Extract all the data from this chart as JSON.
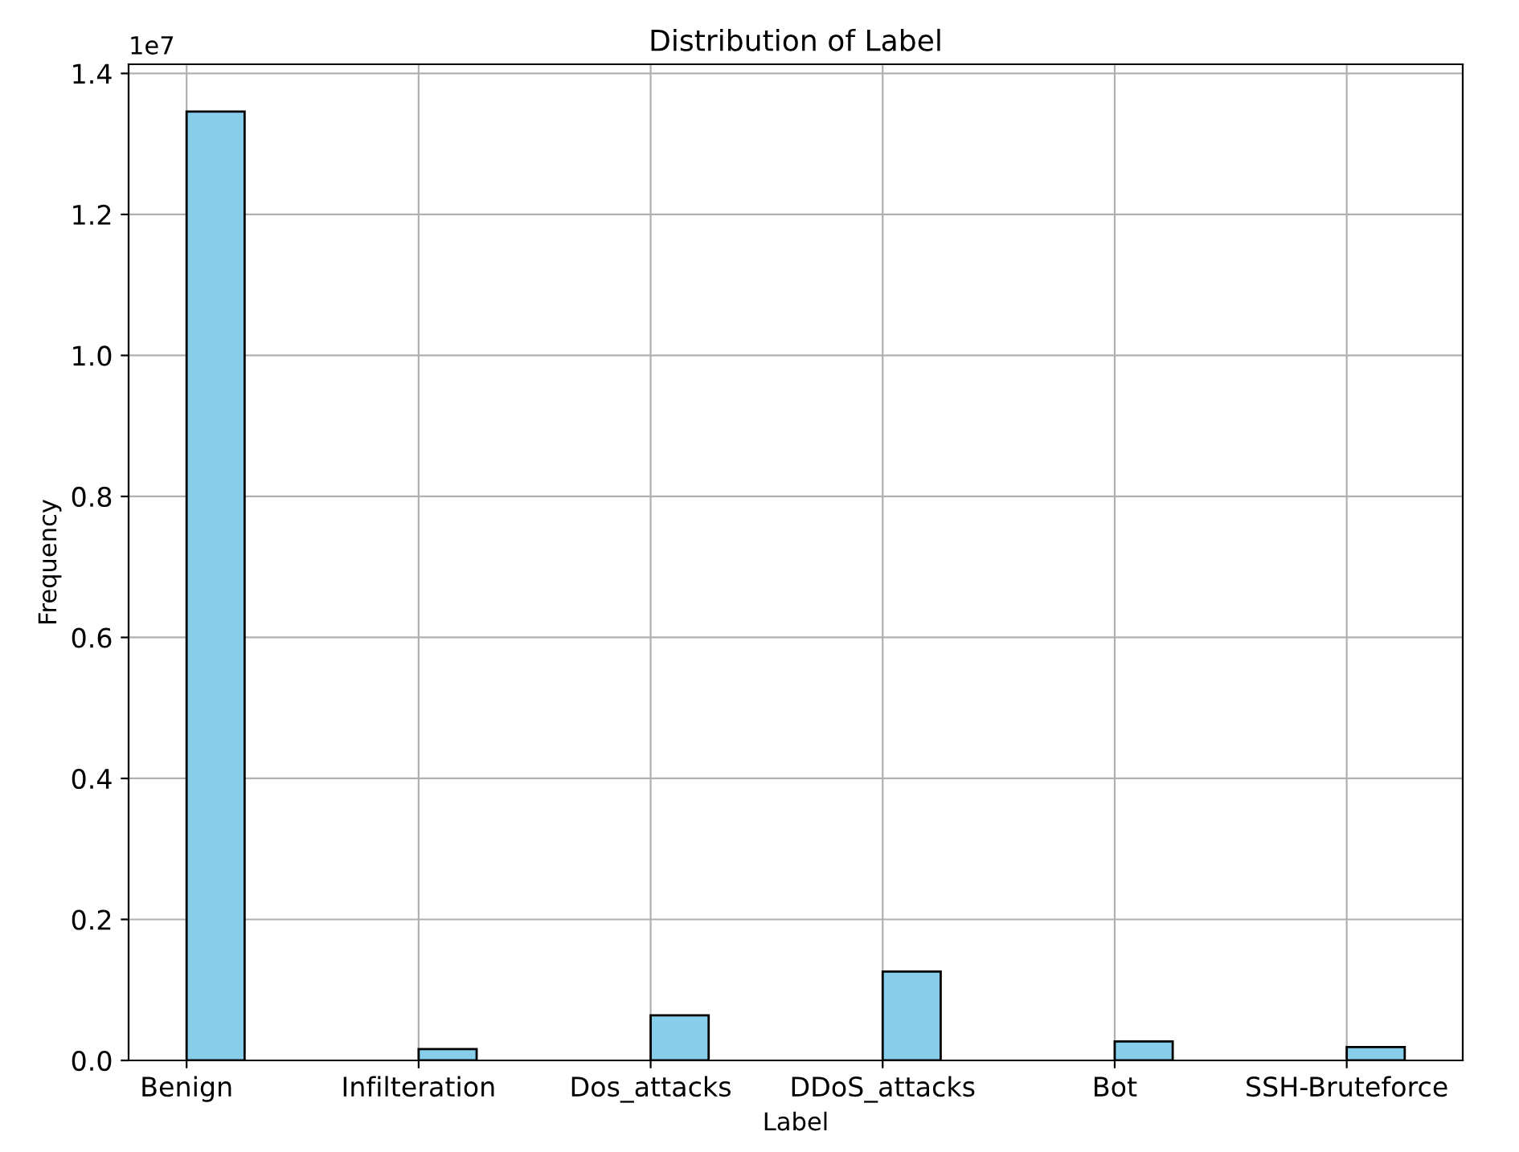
{
  "chart_data": {
    "type": "bar",
    "title": "Distribution of Label",
    "xlabel": "Label",
    "ylabel": "Frequency",
    "categories": [
      "Benign",
      "Infilteration",
      "Dos_attacks",
      "DDoS_attacks",
      "Bot",
      "SSH-Bruteforce"
    ],
    "values": [
      1.346,
      0.016,
      0.064,
      0.126,
      0.027,
      0.019
    ],
    "color": "#87ceeb",
    "ylim": [
      0,
      1.413
    ],
    "yticks": [
      {
        "value": 0,
        "label": "0.0"
      },
      0.2,
      0.4,
      0.6,
      0.8,
      {
        "value": 1,
        "label": "1.0"
      },
      1.2,
      1.4
    ],
    "annotations": [
      "1e7"
    ],
    "grid": true
  }
}
